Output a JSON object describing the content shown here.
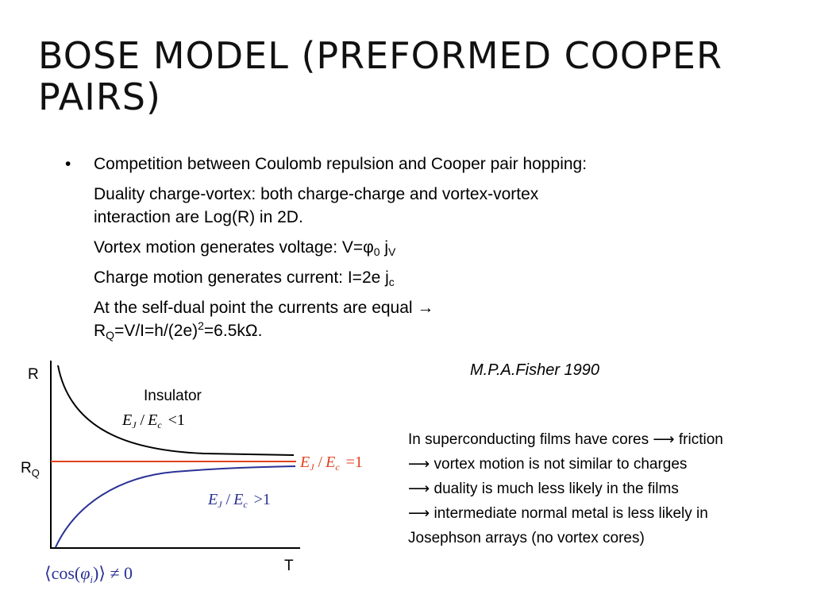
{
  "slide": {
    "title_lines": [
      "BOSE MODEL (PREFORMED COOPER",
      "PAIRS)"
    ]
  },
  "body": {
    "bullet_symbol": "•",
    "bullet_main": "Competition between Coulomb repulsion and Cooper pair hopping:",
    "duality_lines": [
      "Duality charge-vortex: both charge-charge and vortex-vortex",
      "interaction are Log(R) in 2D."
    ],
    "vortex": {
      "text": "Vortex motion generates voltage: V=φ",
      "sub1": "0",
      "mid": " j",
      "sub2": "V"
    },
    "charge": {
      "text": "Charge motion generates current: I=2e j",
      "sub": "c"
    },
    "selfdual_line1": "At the self-dual point the currents are equal →",
    "rq": {
      "r": "R",
      "sub": "Q",
      "text1": "=V/I=h/(2e)",
      "sup": "2",
      "text2": "=6.5kΩ."
    }
  },
  "citation": "M.P.A.Fisher 1990",
  "note_lines": [
    "In superconducting films have cores ⟶ friction",
    "⟶ vortex motion is not similar to charges",
    "⟶ duality is much less likely in the films",
    "⟶ intermediate normal metal is less likely in",
    "Josephson arrays (no vortex cores)"
  ],
  "graph": {
    "y_axis_label": "R",
    "x_axis_label": "T",
    "rq_label": {
      "main": "R",
      "sub": "Q"
    },
    "insulator_label": "Insulator",
    "ratio": {
      "EJ": "E",
      "J": "J",
      "slash": "/",
      "Ec": "E",
      "c": "c"
    },
    "relations": {
      "insulator": "<1",
      "critical": "=1",
      "super": ">1"
    },
    "order_parameter": {
      "open": "⟨cos(",
      "phi": "φ",
      "sub": "i",
      "close": ")⟩ ≠ 0"
    },
    "colors": {
      "insulator": "#000000",
      "critical": "#e0421e",
      "superconductor": "#2a3196",
      "axis": "#000000",
      "order_parameter": "#2a3196"
    }
  }
}
